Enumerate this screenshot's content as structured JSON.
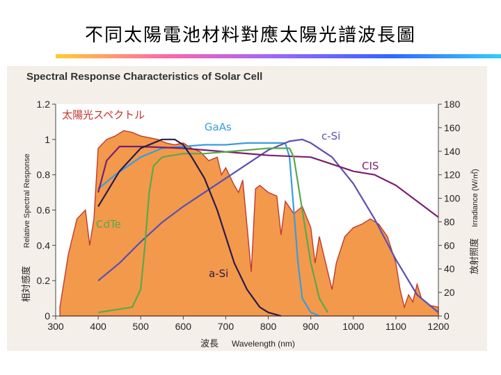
{
  "slide": {
    "title": "不同太陽電池材料對應太陽光譜波長圖"
  },
  "chart_data": {
    "type": "line",
    "title": "Spectral Response Characteristics of Solar Cell",
    "xlabel_cn": "波長",
    "xlabel_en": "Wavelength (nm)",
    "ylabel_cn": "相対感度",
    "ylabel_en": "Relative Spectral Response",
    "y2label_cn": "放射照度",
    "y2label_en": "Irradiance (W/㎡)",
    "xlim": [
      300,
      1200
    ],
    "ylim": [
      0,
      1.2
    ],
    "y2lim": [
      0,
      180
    ],
    "x_ticks": [
      "300",
      "400",
      "500",
      "600",
      "700",
      "800",
      "900",
      "1000",
      "1100",
      "1200"
    ],
    "y_ticks": [
      "0",
      "0.2",
      "0.4",
      "0.6",
      "0.8",
      "1",
      "1.2"
    ],
    "y2_ticks": [
      "0",
      "20",
      "40",
      "60",
      "80",
      "100",
      "120",
      "140",
      "160",
      "180"
    ],
    "colors": {
      "spectrum_fill": "#f2994c",
      "spectrum_edge": "#c0392b",
      "gaas": "#3a9bdc",
      "csi": "#5a4fb0",
      "cis": "#7a1f6e",
      "cdte": "#5aa84a",
      "asi": "#2a1a4a",
      "labels": "#c8302a"
    },
    "spectrum": {
      "name": "太陽光スペクトル",
      "x": [
        310,
        330,
        350,
        370,
        380,
        390,
        400,
        420,
        440,
        460,
        480,
        500,
        520,
        540,
        560,
        580,
        600,
        620,
        640,
        660,
        680,
        690,
        700,
        720,
        730,
        740,
        760,
        770,
        780,
        800,
        820,
        830,
        840,
        860,
        880,
        900,
        910,
        920,
        940,
        950,
        960,
        980,
        1000,
        1020,
        1040,
        1060,
        1080,
        1100,
        1110,
        1120,
        1130,
        1140,
        1150,
        1160,
        1180,
        1200
      ],
      "y": [
        0.05,
        0.35,
        0.55,
        0.6,
        0.4,
        0.55,
        0.95,
        1.0,
        1.02,
        1.05,
        1.04,
        1.02,
        1.01,
        1.0,
        0.98,
        0.97,
        0.98,
        0.95,
        0.93,
        0.88,
        0.9,
        0.8,
        0.84,
        0.74,
        0.7,
        0.77,
        0.25,
        0.72,
        0.74,
        0.7,
        0.68,
        0.46,
        0.65,
        0.58,
        0.62,
        0.5,
        0.3,
        0.45,
        0.25,
        0.15,
        0.3,
        0.45,
        0.5,
        0.52,
        0.55,
        0.52,
        0.45,
        0.3,
        0.15,
        0.05,
        0.12,
        0.08,
        0.18,
        0.1,
        0.06,
        0.05
      ]
    },
    "series": [
      {
        "name": "GaAs",
        "x": [
          400,
          440,
          500,
          550,
          600,
          650,
          700,
          750,
          800,
          840,
          850,
          860,
          870,
          880,
          900,
          920
        ],
        "y": [
          0.72,
          0.8,
          0.9,
          0.95,
          0.96,
          0.97,
          0.97,
          0.98,
          0.98,
          0.98,
          0.9,
          0.6,
          0.3,
          0.1,
          0.02,
          0.0
        ]
      },
      {
        "name": "c-Si",
        "x": [
          400,
          450,
          500,
          550,
          600,
          650,
          700,
          750,
          800,
          850,
          880,
          900,
          950,
          1000,
          1050,
          1100,
          1150,
          1200
        ],
        "y": [
          0.2,
          0.3,
          0.42,
          0.53,
          0.62,
          0.7,
          0.78,
          0.86,
          0.94,
          0.99,
          1.0,
          0.98,
          0.9,
          0.75,
          0.55,
          0.32,
          0.12,
          0.02
        ]
      },
      {
        "name": "CIS",
        "x": [
          400,
          420,
          450,
          500,
          600,
          700,
          800,
          900,
          1000,
          1050,
          1100,
          1150,
          1200
        ],
        "y": [
          0.7,
          0.88,
          0.96,
          0.96,
          0.95,
          0.93,
          0.91,
          0.9,
          0.82,
          0.8,
          0.74,
          0.65,
          0.56
        ]
      },
      {
        "name": "CdTe",
        "x": [
          400,
          480,
          500,
          510,
          520,
          530,
          550,
          600,
          650,
          700,
          750,
          800,
          850,
          860,
          880,
          900,
          920,
          940
        ],
        "y": [
          0.02,
          0.05,
          0.15,
          0.4,
          0.7,
          0.85,
          0.9,
          0.92,
          0.92,
          0.93,
          0.94,
          0.95,
          0.95,
          0.9,
          0.6,
          0.3,
          0.1,
          0.02
        ]
      },
      {
        "name": "a-Si",
        "x": [
          400,
          450,
          500,
          550,
          580,
          600,
          620,
          650,
          680,
          700,
          720,
          750,
          780,
          800,
          830
        ],
        "y": [
          0.62,
          0.82,
          0.95,
          1.0,
          1.0,
          0.97,
          0.9,
          0.78,
          0.6,
          0.45,
          0.3,
          0.15,
          0.05,
          0.02,
          0.0
        ]
      }
    ],
    "annotations": [
      {
        "text": "太陽光スペクトル",
        "x": 315,
        "y": 1.12,
        "color": "#c8302a"
      },
      {
        "text": "GaAs",
        "x": 650,
        "y": 1.05,
        "color": "#3a9bdc"
      },
      {
        "text": "c-Si",
        "x": 925,
        "y": 1.0,
        "color": "#5a4fb0"
      },
      {
        "text": "CIS",
        "x": 1020,
        "y": 0.83,
        "color": "#7a1f6e"
      },
      {
        "text": "CdTe",
        "x": 395,
        "y": 0.5,
        "color": "#5aa84a"
      },
      {
        "text": "a-Si",
        "x": 660,
        "y": 0.22,
        "color": "#2a1a4a"
      }
    ]
  }
}
